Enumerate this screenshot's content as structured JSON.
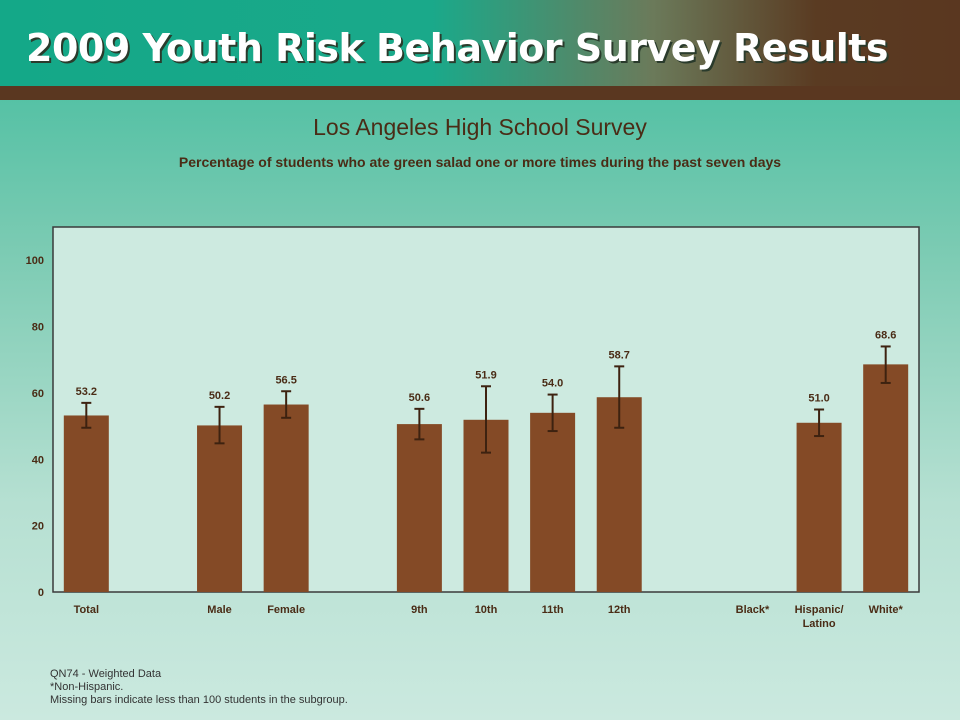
{
  "header": {
    "title": "2009 Youth Risk Behavior Survey Results"
  },
  "footnotes": [
    "QN74 - Weighted Data",
    "*Non-Hispanic.",
    "Missing bars indicate less than 100 students in the subgroup."
  ],
  "colors": {
    "bar": "#844a26",
    "error": "#3d2210",
    "plot_bg": "#cdeae0",
    "text": "#4a2c16"
  },
  "chart_data": {
    "type": "bar",
    "title": "Los Angeles High School Survey",
    "subtitle": "Percentage of students who ate green salad one or more times during the past seven days",
    "ylim": [
      0,
      110
    ],
    "yticks": [
      0,
      20,
      40,
      60,
      80,
      100
    ],
    "grid": false,
    "legend": "none",
    "categories": [
      "Total",
      "",
      "Male",
      "Female",
      "",
      "9th",
      "10th",
      "11th",
      "12th",
      "",
      "Black*",
      "Hispanic/ Latino",
      "White*"
    ],
    "values": [
      53.2,
      null,
      50.2,
      56.5,
      null,
      50.6,
      51.9,
      54.0,
      58.7,
      null,
      null,
      51.0,
      68.6
    ],
    "value_labels": [
      "53.2",
      "",
      "50.2",
      "56.5",
      "",
      "50.6",
      "51.9",
      "54.0",
      "58.7",
      "",
      "",
      "51.0",
      "68.6"
    ],
    "ci_lower": [
      49.5,
      null,
      44.8,
      52.5,
      null,
      46.0,
      42.0,
      48.5,
      49.5,
      null,
      null,
      47.0,
      63.0
    ],
    "ci_upper": [
      57.0,
      null,
      55.8,
      60.5,
      null,
      55.2,
      62.0,
      59.5,
      68.0,
      null,
      null,
      55.0,
      74.0
    ]
  }
}
